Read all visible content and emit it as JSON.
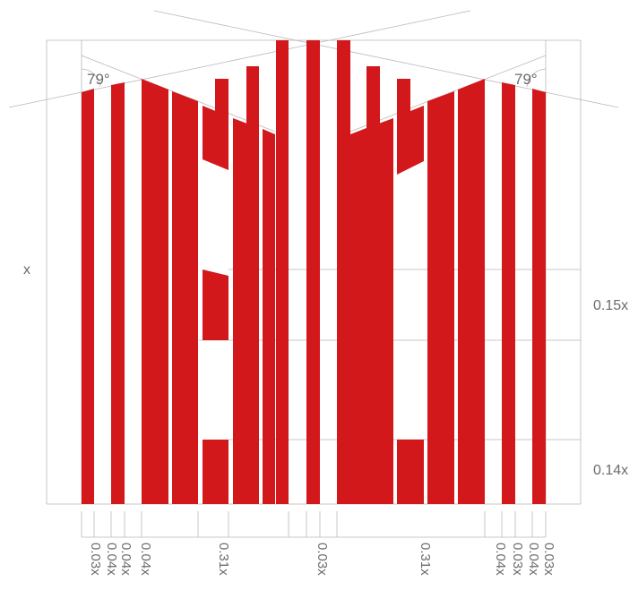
{
  "colors": {
    "bar": "#d2181b",
    "guide": "#b4b4b4",
    "text": "#6b6b6b"
  },
  "labels": {
    "height": "x",
    "angle_left": "79°",
    "angle_right": "79°",
    "band_upper": "0.15x",
    "band_lower": "0.14x",
    "widths": [
      "0.03x",
      "0.04x",
      "0.04x",
      "0.31x",
      "0.03x",
      "0.31x",
      "0.04x",
      "0.03x",
      "0.04x",
      "0.03x"
    ]
  }
}
